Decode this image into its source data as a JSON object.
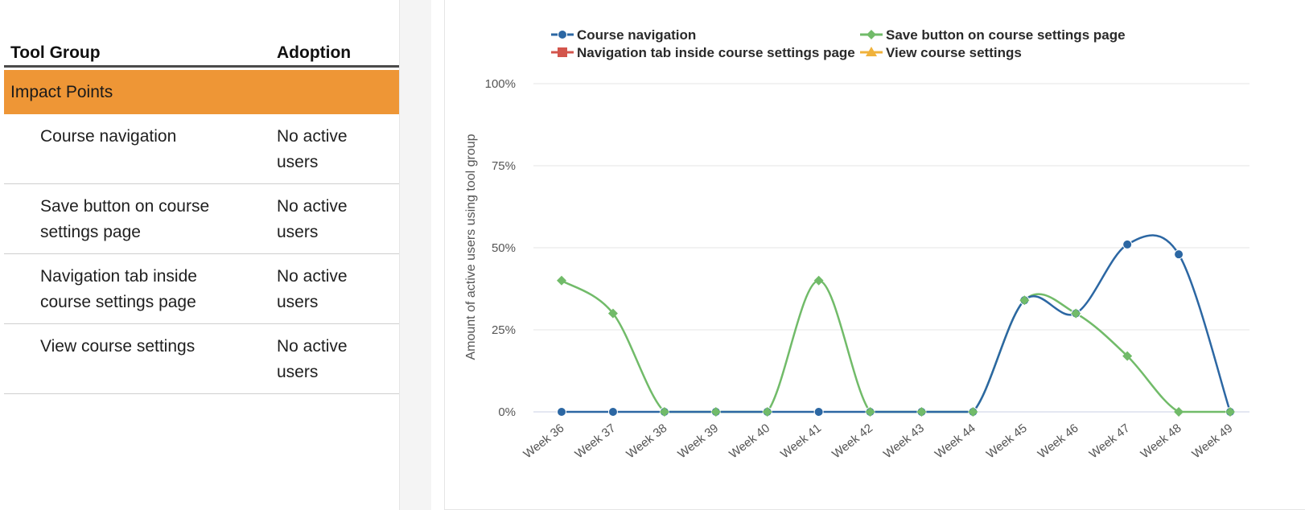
{
  "table": {
    "header_group": "Tool Group",
    "header_adoption": "Adoption",
    "group_label": "Impact Points",
    "rows": [
      {
        "name": "Course navigation",
        "adoption": "No active users"
      },
      {
        "name": "Save button on course settings page",
        "adoption": "No active users"
      },
      {
        "name": "Navigation tab inside course settings page",
        "adoption": "No active users"
      },
      {
        "name": "View course settings",
        "adoption": "No active users"
      }
    ]
  },
  "chart_data": {
    "type": "line",
    "title": "",
    "xlabel": "",
    "ylabel": "Amount of active users using tool group",
    "ylim": [
      0,
      100
    ],
    "yticks": [
      "0%",
      "25%",
      "50%",
      "75%",
      "100%"
    ],
    "categories": [
      "Week 36",
      "Week 37",
      "Week 38",
      "Week 39",
      "Week 40",
      "Week 41",
      "Week 42",
      "Week 43",
      "Week 44",
      "Week 45",
      "Week 46",
      "Week 47",
      "Week 48",
      "Week 49"
    ],
    "legend_position": "top",
    "grid": true,
    "series": [
      {
        "name": "Course navigation",
        "color": "#2c67a3",
        "marker": "circle",
        "values": [
          0,
          0,
          0,
          0,
          0,
          0,
          0,
          0,
          0,
          34,
          30,
          51,
          48,
          0
        ]
      },
      {
        "name": "Navigation tab inside course settings page",
        "color": "#d3554c",
        "marker": "square",
        "values": null
      },
      {
        "name": "Save button on course settings page",
        "color": "#71bb69",
        "marker": "diamond",
        "values": [
          40,
          30,
          0,
          0,
          0,
          40,
          0,
          0,
          0,
          34,
          30,
          17,
          0,
          0
        ]
      },
      {
        "name": "View course settings",
        "color": "#f0b23b",
        "marker": "triangle",
        "values": null
      }
    ]
  }
}
